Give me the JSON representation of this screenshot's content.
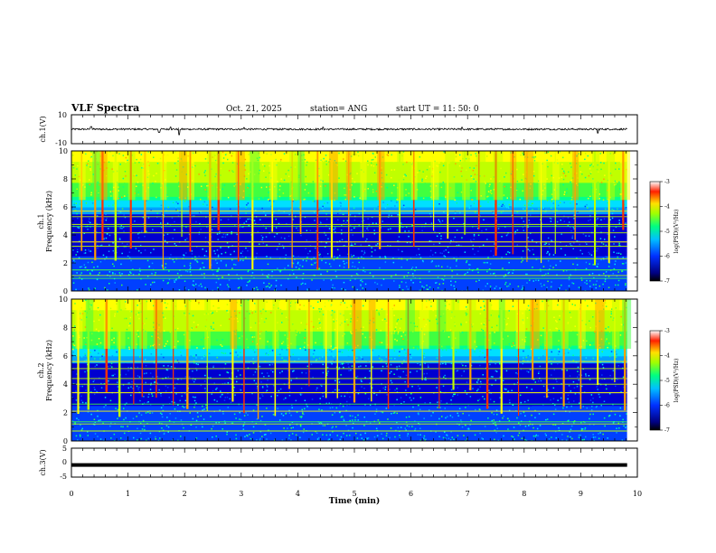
{
  "header": {
    "title": "VLF Spectra",
    "date": "Oct. 21, 2025",
    "station": "station= ANG",
    "start": "start  UT  =   11: 50: 0"
  },
  "chart_data": [
    {
      "type": "line",
      "name": "ch1-waveform",
      "ylabel": "ch.1(V)",
      "ylim": [
        -10,
        10
      ],
      "yticks": [
        "10",
        "-10"
      ],
      "baseline": 0.0,
      "noise_amplitude": 0.6,
      "spikes": [
        [
          0.35,
          1.8
        ],
        [
          1.55,
          -2.2
        ],
        [
          1.75,
          1.5
        ],
        [
          1.9,
          -3.8
        ],
        [
          3.05,
          1.2
        ],
        [
          4.45,
          1.4
        ],
        [
          6.9,
          1.3
        ],
        [
          9.3,
          -2.6
        ]
      ]
    },
    {
      "type": "heatmap",
      "name": "ch1-spectrogram",
      "ylabel": "ch.1",
      "ylabel2": "Frequency (kHz)",
      "ylim": [
        0,
        10
      ],
      "yticks": [
        "0",
        "2",
        "4",
        "6",
        "8",
        "10"
      ],
      "colorbar": {
        "label": "log(PSD)(V²/Hz)",
        "range": [
          -7,
          -3
        ],
        "ticks": [
          "-3",
          "-4",
          "-5",
          "-6",
          "-7"
        ]
      },
      "spheric_times": [
        0.18,
        0.42,
        0.55,
        0.78,
        1.05,
        1.3,
        1.62,
        1.95,
        2.1,
        2.45,
        2.6,
        2.95,
        3.2,
        3.55,
        3.9,
        4.05,
        4.35,
        4.6,
        4.9,
        5.15,
        5.45,
        5.8,
        6.05,
        6.4,
        6.65,
        6.95,
        7.2,
        7.5,
        7.8,
        8.05,
        8.3,
        8.55,
        8.9,
        9.25,
        9.5,
        9.75
      ],
      "narrowband_lines_khz": [
        0.9,
        1.1,
        1.5,
        2.3,
        3.2,
        3.5,
        4.15,
        4.6,
        4.75,
        5.3,
        5.7
      ]
    },
    {
      "type": "heatmap",
      "name": "ch2-spectrogram",
      "ylabel": "ch.2",
      "ylabel2": "Frequency (kHz)",
      "ylim": [
        0,
        10
      ],
      "yticks": [
        "0",
        "2",
        "4",
        "6",
        "8",
        "10"
      ],
      "colorbar": {
        "label": "log(PSD)(V²/Hz)",
        "range": [
          -7,
          -3
        ],
        "ticks": [
          "-3",
          "-4",
          "-5",
          "-6",
          "-7"
        ]
      },
      "spheric_times": [
        0.12,
        0.3,
        0.62,
        0.85,
        1.1,
        1.25,
        1.5,
        1.8,
        2.05,
        2.4,
        2.85,
        3.05,
        3.3,
        3.6,
        3.85,
        4.2,
        4.5,
        4.7,
        5.0,
        5.3,
        5.6,
        5.95,
        6.2,
        6.5,
        6.75,
        7.05,
        7.35,
        7.6,
        7.9,
        8.15,
        8.4,
        8.7,
        9.0,
        9.3,
        9.6,
        9.78
      ],
      "narrowband_lines_khz": [
        0.7,
        1.2,
        1.35,
        2.1,
        2.6,
        3.4,
        4.0,
        4.4,
        5.1,
        5.6
      ]
    },
    {
      "type": "line",
      "name": "ch3-waveform",
      "ylabel": "ch.3(V)",
      "ylim": [
        -5,
        5
      ],
      "yticks": [
        "5",
        "0",
        "-5"
      ],
      "baseline": -0.8,
      "noise_amplitude": 0.0
    }
  ],
  "x_axis": {
    "label": "Time (min)",
    "range": [
      0,
      10
    ],
    "ticks": [
      "0",
      "1",
      "2",
      "3",
      "4",
      "5",
      "6",
      "7",
      "8",
      "9",
      "10"
    ],
    "data_end": 9.82
  },
  "colors": {
    "colormap": [
      "#000070",
      "#0000d0",
      "#0040ff",
      "#00a0ff",
      "#00e0ff",
      "#00ff90",
      "#40ff40",
      "#c0ff00",
      "#ffff00",
      "#ffa000",
      "#ff3000",
      "#c00000"
    ]
  }
}
